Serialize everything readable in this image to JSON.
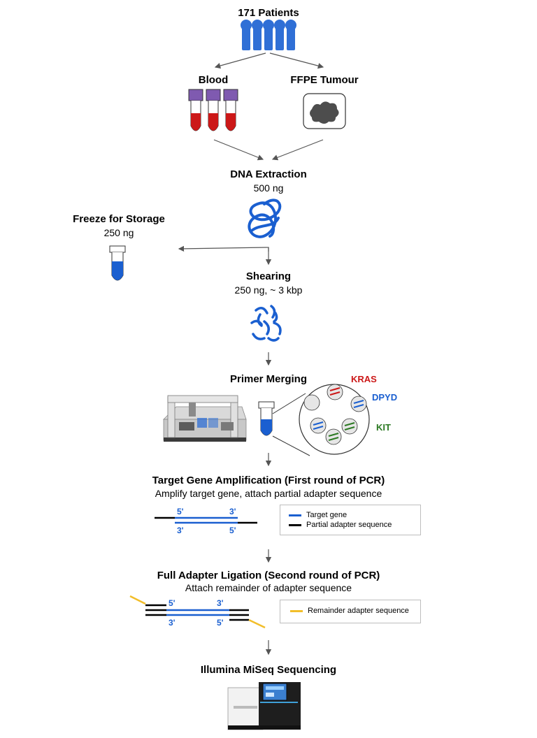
{
  "patients": {
    "title": "171 Patients"
  },
  "sources": {
    "blood": "Blood",
    "ffpe": "FFPE Tumour"
  },
  "extraction": {
    "title": "DNA Extraction",
    "amount": "500 ng"
  },
  "freeze": {
    "title": "Freeze for Storage",
    "amount": "250 ng"
  },
  "shearing": {
    "title": "Shearing",
    "detail": "250 ng, ~ 3 kbp"
  },
  "primer": {
    "title": "Primer Merging",
    "genes": [
      "KRAS",
      "DPYD",
      "KIT"
    ]
  },
  "pcr1": {
    "title": "Target Gene Amplification (First round of PCR)",
    "subtitle": "Amplify target gene, attach partial adapter sequence",
    "labels": {
      "top_left": "5'",
      "top_right": "3'",
      "bottom_left": "3'",
      "bottom_right": "5'"
    },
    "legend": [
      "Target gene",
      "Partial adapter sequence"
    ]
  },
  "pcr2": {
    "title": "Full Adapter Ligation (Second round of PCR)",
    "subtitle": "Attach remainder of adapter sequence",
    "labels": {
      "top_left": "5'",
      "top_right": "3'",
      "bottom_left": "3'",
      "bottom_right": "5'"
    },
    "legend": [
      "Remainder adapter sequence"
    ]
  },
  "sequencing": {
    "title": "Illumina MiSeq Sequencing"
  },
  "colors": {
    "blue": "#1a5fd0",
    "red": "#cc1818",
    "green": "#2d7a24",
    "yellow": "#f2be2a",
    "purple": "#7f5ab0",
    "arrow": "#555555"
  }
}
